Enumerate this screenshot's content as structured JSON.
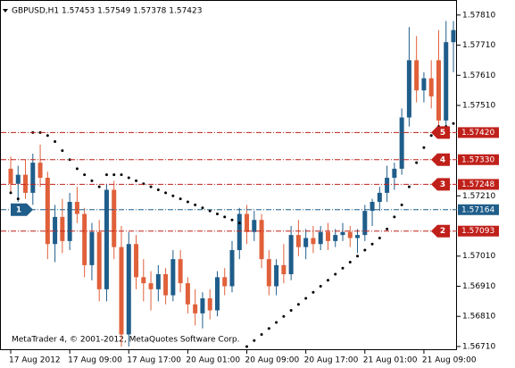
{
  "chart_data": {
    "type": "candlestick",
    "title": "GBPUSD,H1  1.57453 1.57549 1.57378 1.57423",
    "footer": "MetaTrader 4, © 2001-2012, MetaQuotes Software Corp.",
    "categories": [
      "17 Aug 2012",
      null,
      null,
      null,
      null,
      null,
      null,
      null,
      "17 Aug 09:00",
      null,
      null,
      null,
      null,
      null,
      null,
      null,
      "17 Aug 17:00",
      null,
      null,
      null,
      null,
      null,
      null,
      null,
      "20 Aug 01:00",
      null,
      null,
      null,
      null,
      null,
      null,
      null,
      "20 Aug 09:00",
      null,
      null,
      null,
      null,
      null,
      null,
      null,
      "20 Aug 17:00",
      null,
      null,
      null,
      null,
      null,
      null,
      null,
      "21 Aug 01:00",
      null,
      null,
      null,
      null,
      null,
      null,
      null,
      "21 Aug 09:00",
      null,
      null,
      null,
      null
    ],
    "open": [
      1.573,
      1.5725,
      1.5728,
      1.5722,
      1.5732,
      1.5727,
      1.5705,
      1.5714,
      1.5706,
      1.5719,
      1.5715,
      1.5698,
      1.5709,
      1.569,
      1.5723,
      1.5704,
      1.5675,
      1.5705,
      1.5694,
      1.5692,
      1.569,
      1.5695,
      1.5688,
      1.57,
      1.5692,
      1.5685,
      1.5682,
      1.5687,
      1.5683,
      1.5694,
      1.5691,
      1.5703,
      1.5715,
      1.5709,
      1.5713,
      1.57,
      1.5691,
      1.5698,
      1.5695,
      1.5708,
      1.5704,
      1.5707,
      1.5705,
      1.5709,
      1.5706,
      1.5708,
      1.5709,
      1.5707,
      1.5708,
      1.5716,
      1.5719,
      1.5722,
      1.5727,
      1.573,
      1.5747,
      1.5766,
      1.5756,
      1.576,
      1.5766,
      1.5746,
      1.5772
    ],
    "high": [
      1.5734,
      1.5731,
      1.5733,
      1.5735,
      1.5738,
      1.5729,
      1.5718,
      1.572,
      1.5722,
      1.5724,
      1.5717,
      1.5712,
      1.5713,
      1.5725,
      1.5726,
      1.5711,
      1.5709,
      1.5708,
      1.57,
      1.5696,
      1.5698,
      1.5697,
      1.5703,
      1.5703,
      1.5694,
      1.569,
      1.5689,
      1.569,
      1.5696,
      1.5697,
      1.5706,
      1.5717,
      1.5718,
      1.5716,
      1.5715,
      1.5703,
      1.57,
      1.5705,
      1.5711,
      1.5713,
      1.571,
      1.5711,
      1.5711,
      1.5712,
      1.571,
      1.5712,
      1.5711,
      1.571,
      1.5718,
      1.572,
      1.5724,
      1.5731,
      1.5732,
      1.575,
      1.5777,
      1.5774,
      1.5762,
      1.5766,
      1.5776,
      1.5779,
      1.5779
    ],
    "low": [
      1.5722,
      1.5719,
      1.572,
      1.5718,
      1.5724,
      1.57,
      1.5699,
      1.5702,
      1.5703,
      1.5712,
      1.5694,
      1.5693,
      1.5686,
      1.5686,
      1.57,
      1.5671,
      1.5671,
      1.569,
      1.5686,
      1.5683,
      1.5686,
      1.5685,
      1.5686,
      1.5689,
      1.5682,
      1.5678,
      1.5677,
      1.568,
      1.5681,
      1.5688,
      1.5689,
      1.57,
      1.5705,
      1.5706,
      1.5697,
      1.5688,
      1.5688,
      1.5692,
      1.5693,
      1.5701,
      1.57,
      1.5702,
      1.5703,
      1.5703,
      1.5704,
      1.5706,
      1.5704,
      1.5702,
      1.5706,
      1.5711,
      1.5716,
      1.5719,
      1.5723,
      1.5728,
      1.5744,
      1.5752,
      1.5752,
      1.575,
      1.5743,
      1.5744,
      1.5762
    ],
    "close": [
      1.5725,
      1.5728,
      1.5722,
      1.5732,
      1.5727,
      1.5705,
      1.5714,
      1.5706,
      1.5719,
      1.5715,
      1.5698,
      1.5709,
      1.569,
      1.5723,
      1.5704,
      1.5675,
      1.5705,
      1.5694,
      1.5692,
      1.569,
      1.5695,
      1.5688,
      1.57,
      1.5692,
      1.5685,
      1.5682,
      1.5687,
      1.5683,
      1.5694,
      1.5691,
      1.5703,
      1.5715,
      1.5709,
      1.5713,
      1.57,
      1.5691,
      1.5698,
      1.5695,
      1.5708,
      1.5704,
      1.5707,
      1.5705,
      1.5709,
      1.5706,
      1.5708,
      1.5709,
      1.5707,
      1.5708,
      1.5716,
      1.5719,
      1.5722,
      1.5727,
      1.573,
      1.5747,
      1.5766,
      1.5756,
      1.576,
      1.5754,
      1.5746,
      1.5772,
      1.5776
    ],
    "sar": [
      1.5722,
      1.572,
      1.5718,
      1.5742,
      1.5742,
      1.5741,
      1.5739,
      1.5736,
      1.5733,
      1.573,
      1.5728,
      1.5726,
      1.5724,
      1.5728,
      1.5728,
      1.5728,
      1.5727,
      1.5726,
      1.5725,
      1.5724,
      1.5723,
      1.5722,
      1.5721,
      1.572,
      1.5719,
      1.5718,
      1.5717,
      1.5716,
      1.5715,
      1.5714,
      1.5713,
      1.5712,
      1.5671,
      1.5673,
      1.5675,
      1.5677,
      1.5679,
      1.5681,
      1.5683,
      1.5685,
      1.5687,
      1.5689,
      1.5691,
      1.5693,
      1.5695,
      1.5697,
      1.5699,
      1.5701,
      1.5703,
      1.5705,
      1.5707,
      1.571,
      1.5714,
      1.5718,
      1.5724,
      1.5732,
      1.5737,
      1.5741,
      1.5744,
      1.5744,
      1.5745
    ],
    "up_color": "#1f5d8a",
    "down_color": "#e0603a",
    "sar_color": "#000000",
    "ylim": [
      1.56698,
      1.57848
    ],
    "yticks": [
      {
        "value": 1.5781,
        "label": "1.57810"
      },
      {
        "value": 1.5771,
        "label": "1.57710"
      },
      {
        "value": 1.5761,
        "label": "1.57610"
      },
      {
        "value": 1.5751,
        "label": "1.57510"
      },
      {
        "value": 1.5721,
        "label": "1.57210"
      },
      {
        "value": 1.5701,
        "label": "1.57010"
      },
      {
        "value": 1.5691,
        "label": "1.56910"
      },
      {
        "value": 1.5681,
        "label": "1.56810"
      },
      {
        "value": 1.5671,
        "label": "1.56710"
      }
    ],
    "levels": [
      {
        "value": 1.5742,
        "label": "1.57420",
        "marker": "5",
        "color": "#c0201a",
        "side": "right"
      },
      {
        "value": 1.5733,
        "label": "1.57330",
        "marker": "4",
        "color": "#c0201a",
        "side": "right"
      },
      {
        "value": 1.57248,
        "label": "1.57248",
        "marker": "3",
        "color": "#c0201a",
        "side": "right"
      },
      {
        "value": 1.57164,
        "label": "1.57164",
        "marker": "1",
        "color": "#1f5d8a",
        "side": "left"
      },
      {
        "value": 1.57093,
        "label": "1.57093",
        "marker": "2",
        "color": "#c0201a",
        "side": "right"
      }
    ]
  }
}
